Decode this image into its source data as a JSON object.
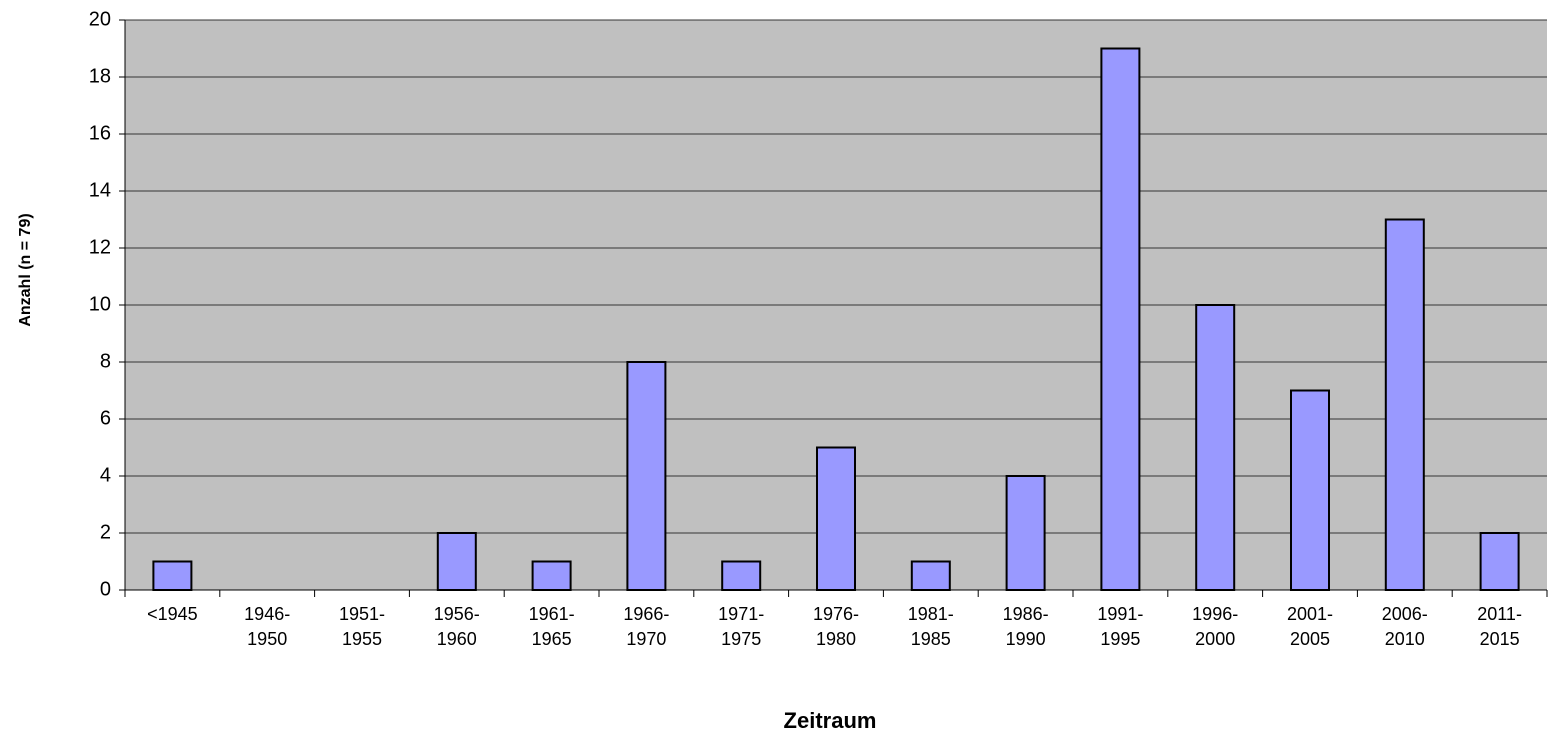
{
  "chart_data": {
    "type": "bar",
    "categories": [
      "<1945",
      "1946-\n1950",
      "1951-\n1955",
      "1956-\n1960",
      "1961-\n1965",
      "1966-\n1970",
      "1971-\n1975",
      "1976-\n1980",
      "1981-\n1985",
      "1986-\n1990",
      "1991-\n1995",
      "1996-\n2000",
      "2001-\n2005",
      "2006-\n2010",
      "2011-\n2015"
    ],
    "values": [
      1,
      0,
      0,
      2,
      1,
      8,
      1,
      5,
      1,
      4,
      19,
      10,
      7,
      13,
      2
    ],
    "color": "#9999ff",
    "ylim": [
      0,
      20
    ],
    "yticks": [
      0,
      2,
      4,
      6,
      8,
      10,
      12,
      14,
      16,
      18,
      20
    ],
    "grid": true,
    "xlabel": "Zeitraum",
    "ylabel": "Anzahl (n = 79)"
  }
}
